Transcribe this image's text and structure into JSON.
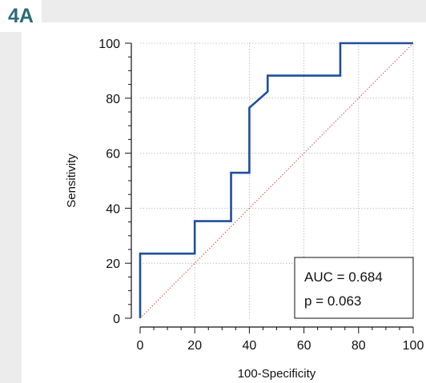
{
  "panel_label": "4A",
  "chart_data": {
    "type": "line",
    "xlabel": "100-Specificity",
    "ylabel": "Sensitivity",
    "xlim": [
      0,
      100
    ],
    "ylim": [
      0,
      100
    ],
    "x_ticks": [
      0,
      20,
      40,
      60,
      80,
      100
    ],
    "y_ticks": [
      0,
      20,
      40,
      60,
      80,
      100
    ],
    "grid": true,
    "series": [
      {
        "x": [
          0,
          0,
          20,
          20,
          33.3,
          33.3,
          40,
          40,
          46.7,
          46.7,
          73.3,
          73.3,
          100
        ],
        "y": [
          0,
          23.5,
          23.5,
          35.3,
          35.3,
          52.9,
          52.9,
          76.5,
          82.4,
          88.2,
          88.2,
          100,
          100
        ],
        "color": "#1f4e9c",
        "style": "step"
      },
      {
        "x": [
          0,
          100
        ],
        "y": [
          0,
          100
        ],
        "color": "#c0504d",
        "style": "dotted"
      }
    ],
    "annotations": [
      "AUC = 0.684",
      "p = 0.063"
    ]
  }
}
